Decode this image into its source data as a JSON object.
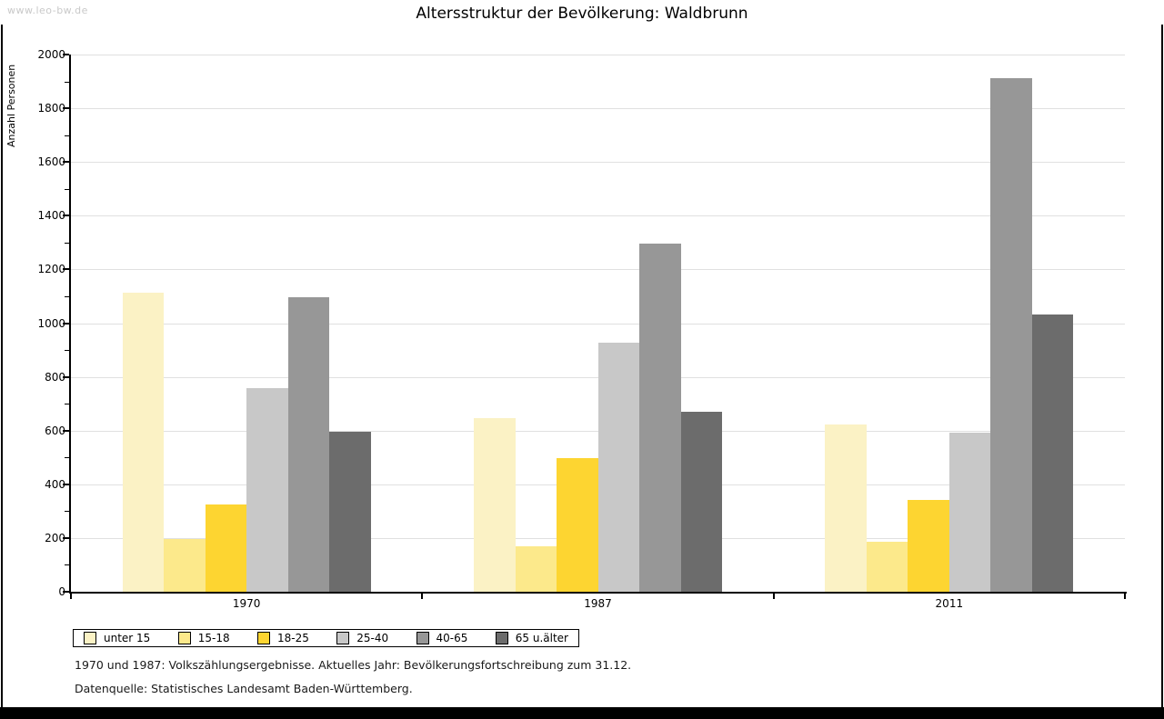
{
  "watermark": "www.leo-bw.de",
  "title": "Altersstruktur der Bevölkerung: Waldbrunn",
  "footnotes": {
    "line1": "1970 und 1987: Volkszählungsergebnisse. Aktuelles Jahr: Bevölkerungsfortschreibung zum 31.12.",
    "line2": "Datenquelle: Statistisches Landesamt Baden-Württemberg."
  },
  "chart_data": {
    "type": "bar",
    "title": "Altersstruktur der Bevölkerung: Waldbrunn",
    "xlabel": "",
    "ylabel": "Anzahl Personen",
    "ylim": [
      0,
      2000
    ],
    "yticks": [
      0,
      200,
      400,
      600,
      800,
      1000,
      1200,
      1400,
      1600,
      1800,
      2000
    ],
    "minor_tick_step": 100,
    "grid": true,
    "legend_position": "bottom",
    "categories": [
      "1970",
      "1987",
      "2011"
    ],
    "series": [
      {
        "name": "unter 15",
        "color": "#FBF2C5",
        "values": [
          1115,
          646,
          622
        ]
      },
      {
        "name": "15-18",
        "color": "#FCE98B",
        "values": [
          198,
          170,
          187
        ]
      },
      {
        "name": "18-25",
        "color": "#FDD531",
        "values": [
          324,
          499,
          343
        ]
      },
      {
        "name": "25-40",
        "color": "#C8C8C8",
        "values": [
          757,
          926,
          591
        ]
      },
      {
        "name": "40-65",
        "color": "#979797",
        "values": [
          1095,
          1296,
          1911
        ]
      },
      {
        "name": "65 u.älter",
        "color": "#6C6C6C",
        "values": [
          595,
          671,
          1031
        ]
      }
    ],
    "colors": {
      "gridline": "#e0e0e0",
      "axis": "#000000"
    }
  }
}
